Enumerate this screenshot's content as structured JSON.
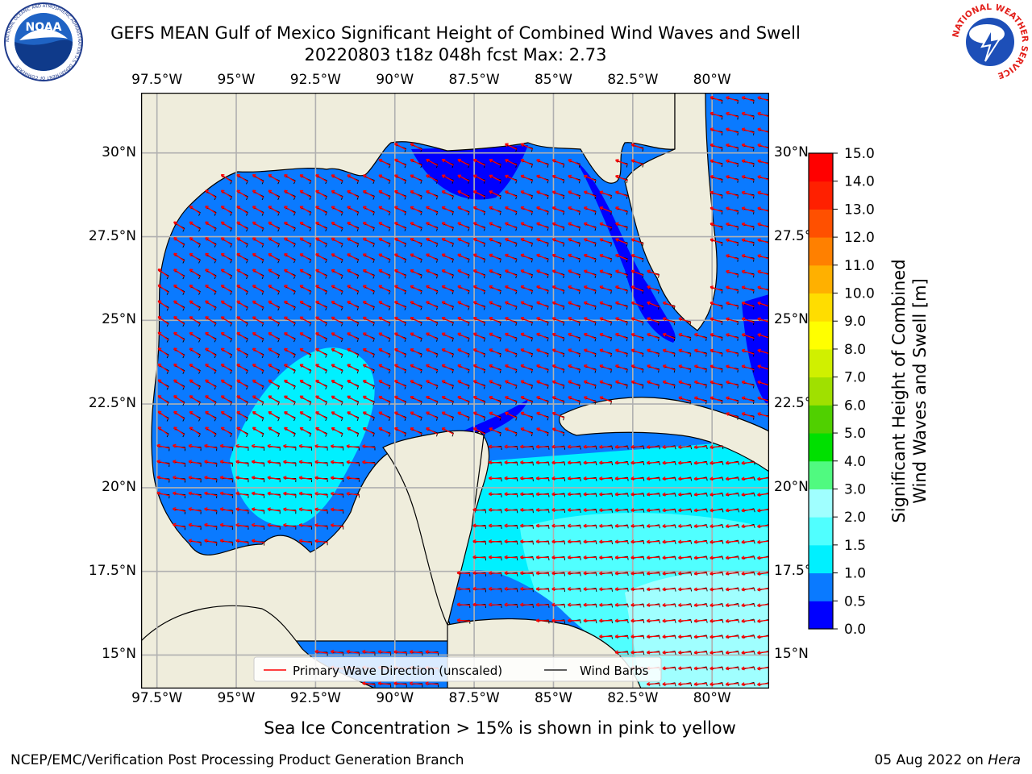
{
  "title": {
    "line1": "GEFS MEAN Gulf of Mexico Significant Height of Combined Wind Waves and Swell",
    "line2": "20220803 t18z 048h fcst   Max: 2.73"
  },
  "logos": {
    "noaa": {
      "text": "NOAA",
      "ring_text": "NATIONAL OCEANIC AND ATMOSPHERIC ADMINISTRATION  U.S. DEPARTMENT OF COMMERCE"
    },
    "nws": {
      "ring_text": "NATIONAL WEATHER SERVICE"
    }
  },
  "map": {
    "lon_labels": [
      "97.5°W",
      "95°W",
      "92.5°W",
      "90°W",
      "87.5°W",
      "85°W",
      "82.5°W",
      "80°W"
    ],
    "lat_labels": [
      "30°N",
      "27.5°N",
      "25°N",
      "22.5°N",
      "20°N",
      "17.5°N",
      "15°N"
    ],
    "lon_range": [
      -98,
      -78.2
    ],
    "lat_range": [
      14,
      31.8
    ],
    "legend": {
      "wave_label": "Primary Wave Direction (unscaled)",
      "barb_label": "Wind Barbs"
    }
  },
  "colorbar": {
    "label_line1": "Significant Height of Combined",
    "label_line2": "Wind Waves and Swell [m]",
    "ticks": [
      "0.0",
      "0.5",
      "1.0",
      "1.5",
      "2.0",
      "3.0",
      "4.0",
      "5.0",
      "6.0",
      "7.0",
      "8.0",
      "9.0",
      "10.0",
      "11.0",
      "12.0",
      "13.0",
      "14.0",
      "15.0"
    ],
    "colors": [
      "#0000ff",
      "#0a7aff",
      "#00f0ff",
      "#50ffff",
      "#a0ffff",
      "#50fa80",
      "#00e000",
      "#50d000",
      "#a0e000",
      "#d0f000",
      "#ffff00",
      "#ffdd00",
      "#ffb000",
      "#ff8000",
      "#ff5000",
      "#ff2000",
      "#ff0000"
    ]
  },
  "caption": "Sea Ice Concentration > 15% is shown in pink to yellow",
  "footer": {
    "left": "NCEP/EMC/Verification Post Processing Product Generation Branch",
    "right_date": "05 Aug 2022 on ",
    "right_host": "Hera"
  },
  "colors": {
    "land": "#efeddc",
    "wave_arrow": "#ff0000",
    "barb": "#000000",
    "grid": "#b0b0b0"
  }
}
